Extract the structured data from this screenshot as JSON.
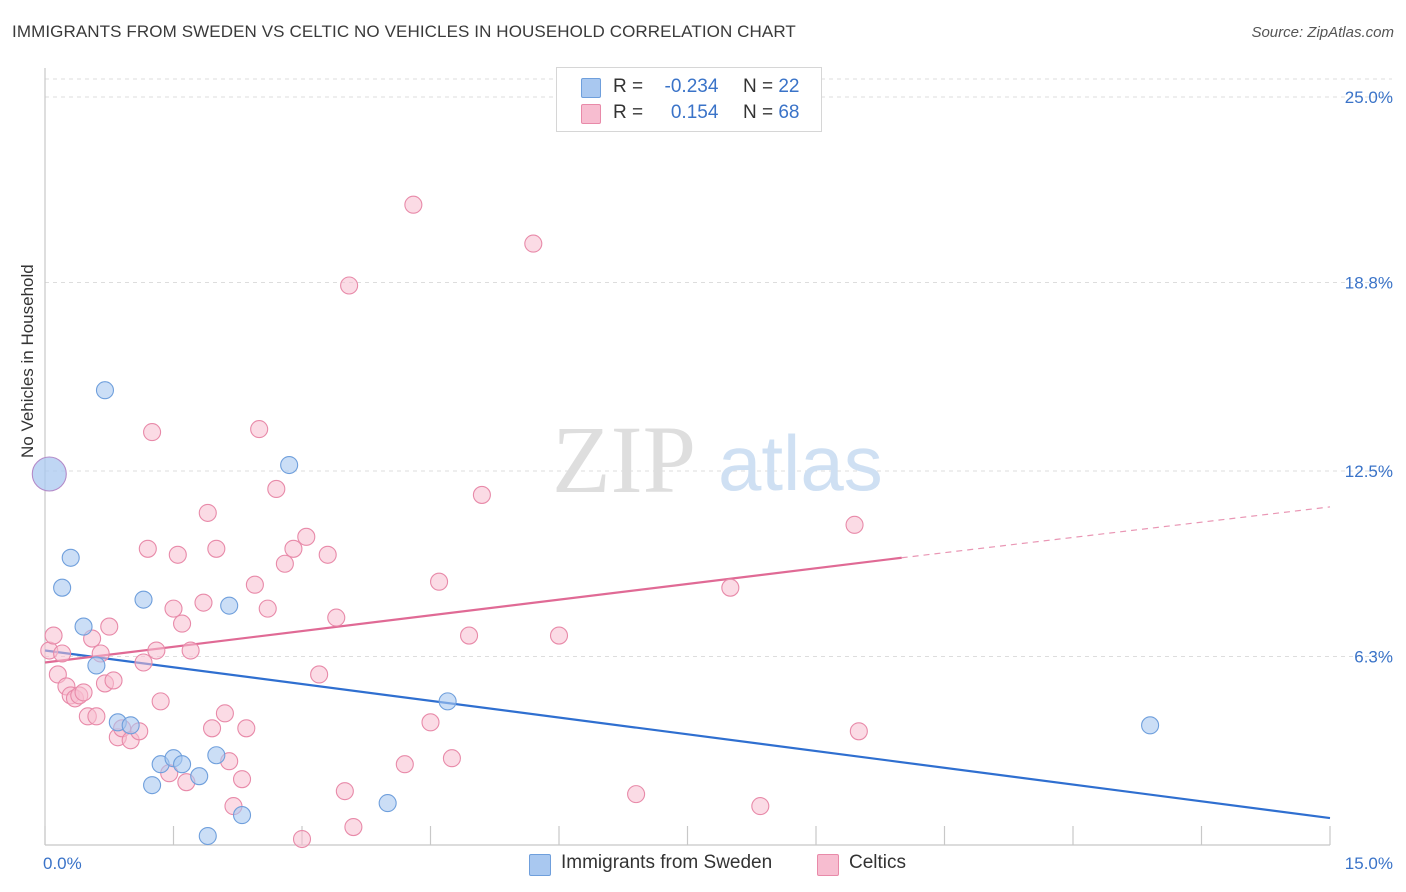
{
  "header": {
    "title": "IMMIGRANTS FROM SWEDEN VS CELTIC NO VEHICLES IN HOUSEHOLD CORRELATION CHART",
    "source": "Source: ZipAtlas.com"
  },
  "watermark": {
    "zip": "ZIP",
    "atlas": "atlas"
  },
  "legend": {
    "rows": [
      {
        "r_label": "R =",
        "r_value": "-0.234",
        "n_label": "N =",
        "n_value": "22",
        "color": "#a9c8f0",
        "border": "#6f9fdc"
      },
      {
        "r_label": "R =",
        "r_value": "0.154",
        "n_label": "N =",
        "n_value": "68",
        "color": "#f7bdd0",
        "border": "#e88aa9"
      }
    ]
  },
  "bottom_legend": {
    "series_a": "Immigrants from Sweden",
    "series_b": "Celtics"
  },
  "colors": {
    "blue_fill": "#a9c8f0",
    "blue_stroke": "#6f9fdc",
    "blue_line": "#2f6fd0",
    "pink_fill": "#f7bdd0",
    "pink_stroke": "#e88aa9",
    "pink_line": "#e06a95",
    "tick_text": "#3a73c8",
    "grid": "#dddddd"
  },
  "chart_data": {
    "type": "scatter",
    "title": "IMMIGRANTS FROM SWEDEN VS CELTIC NO VEHICLES IN HOUSEHOLD CORRELATION CHART",
    "xlabel": "",
    "ylabel": "No Vehicles in Household",
    "xlim": [
      0,
      15
    ],
    "ylim": [
      0,
      25
    ],
    "x_tick_labels": [
      "0.0%",
      "15.0%"
    ],
    "y_ticks": [
      6.3,
      12.5,
      18.8,
      25.0
    ],
    "y_tick_labels": [
      "6.3%",
      "12.5%",
      "18.8%",
      "25.0%"
    ],
    "grid": true,
    "series": [
      {
        "name": "Immigrants from Sweden",
        "R": -0.234,
        "N": 22,
        "points": [
          [
            0.05,
            12.4
          ],
          [
            0.2,
            8.6
          ],
          [
            0.3,
            9.6
          ],
          [
            0.45,
            7.3
          ],
          [
            0.6,
            6.0
          ],
          [
            0.7,
            15.2
          ],
          [
            0.85,
            4.1
          ],
          [
            1.0,
            4.0
          ],
          [
            1.15,
            8.2
          ],
          [
            1.25,
            2.0
          ],
          [
            1.35,
            2.7
          ],
          [
            1.5,
            2.9
          ],
          [
            1.6,
            2.7
          ],
          [
            1.8,
            2.3
          ],
          [
            1.9,
            0.3
          ],
          [
            2.0,
            3.0
          ],
          [
            2.15,
            8.0
          ],
          [
            2.3,
            1.0
          ],
          [
            2.85,
            12.7
          ],
          [
            4.0,
            1.4
          ],
          [
            4.7,
            4.8
          ],
          [
            12.9,
            4.0
          ]
        ],
        "trend": {
          "x": [
            0,
            15
          ],
          "y": [
            6.5,
            0.9
          ]
        }
      },
      {
        "name": "Celtics",
        "R": 0.154,
        "N": 68,
        "points": [
          [
            0.05,
            6.5
          ],
          [
            0.1,
            7.0
          ],
          [
            0.15,
            5.7
          ],
          [
            0.2,
            6.4
          ],
          [
            0.25,
            5.3
          ],
          [
            0.3,
            5.0
          ],
          [
            0.35,
            4.9
          ],
          [
            0.4,
            5.0
          ],
          [
            0.45,
            5.1
          ],
          [
            0.5,
            4.3
          ],
          [
            0.55,
            6.9
          ],
          [
            0.6,
            4.3
          ],
          [
            0.65,
            6.4
          ],
          [
            0.7,
            5.4
          ],
          [
            0.75,
            7.3
          ],
          [
            0.8,
            5.5
          ],
          [
            0.85,
            3.6
          ],
          [
            0.9,
            3.9
          ],
          [
            1.0,
            3.5
          ],
          [
            1.1,
            3.8
          ],
          [
            1.15,
            6.1
          ],
          [
            1.2,
            9.9
          ],
          [
            1.25,
            13.8
          ],
          [
            1.3,
            6.5
          ],
          [
            1.35,
            4.8
          ],
          [
            1.45,
            2.4
          ],
          [
            1.5,
            7.9
          ],
          [
            1.55,
            9.7
          ],
          [
            1.6,
            7.4
          ],
          [
            1.65,
            2.1
          ],
          [
            1.7,
            6.5
          ],
          [
            1.85,
            8.1
          ],
          [
            1.9,
            11.1
          ],
          [
            1.95,
            3.9
          ],
          [
            2.0,
            9.9
          ],
          [
            2.1,
            4.4
          ],
          [
            2.15,
            2.8
          ],
          [
            2.2,
            1.3
          ],
          [
            2.3,
            2.2
          ],
          [
            2.35,
            3.9
          ],
          [
            2.45,
            8.7
          ],
          [
            2.5,
            13.9
          ],
          [
            2.6,
            7.9
          ],
          [
            2.7,
            11.9
          ],
          [
            2.8,
            9.4
          ],
          [
            2.9,
            9.9
          ],
          [
            3.0,
            0.2
          ],
          [
            3.05,
            10.3
          ],
          [
            3.2,
            5.7
          ],
          [
            3.3,
            9.7
          ],
          [
            3.4,
            7.6
          ],
          [
            3.5,
            1.8
          ],
          [
            3.55,
            18.7
          ],
          [
            3.6,
            0.6
          ],
          [
            4.2,
            2.7
          ],
          [
            4.3,
            21.4
          ],
          [
            4.5,
            4.1
          ],
          [
            4.6,
            8.8
          ],
          [
            4.75,
            2.9
          ],
          [
            4.95,
            7.0
          ],
          [
            5.1,
            11.7
          ],
          [
            5.7,
            20.1
          ],
          [
            6.0,
            7.0
          ],
          [
            6.9,
            1.7
          ],
          [
            8.0,
            8.6
          ],
          [
            8.35,
            1.3
          ],
          [
            9.45,
            10.7
          ],
          [
            9.5,
            3.8
          ]
        ],
        "trend": {
          "x": [
            0,
            10
          ],
          "y": [
            6.1,
            9.6
          ],
          "dashed_extension": {
            "x": [
              10,
              15
            ],
            "y": [
              9.6,
              11.3
            ]
          }
        }
      }
    ]
  }
}
